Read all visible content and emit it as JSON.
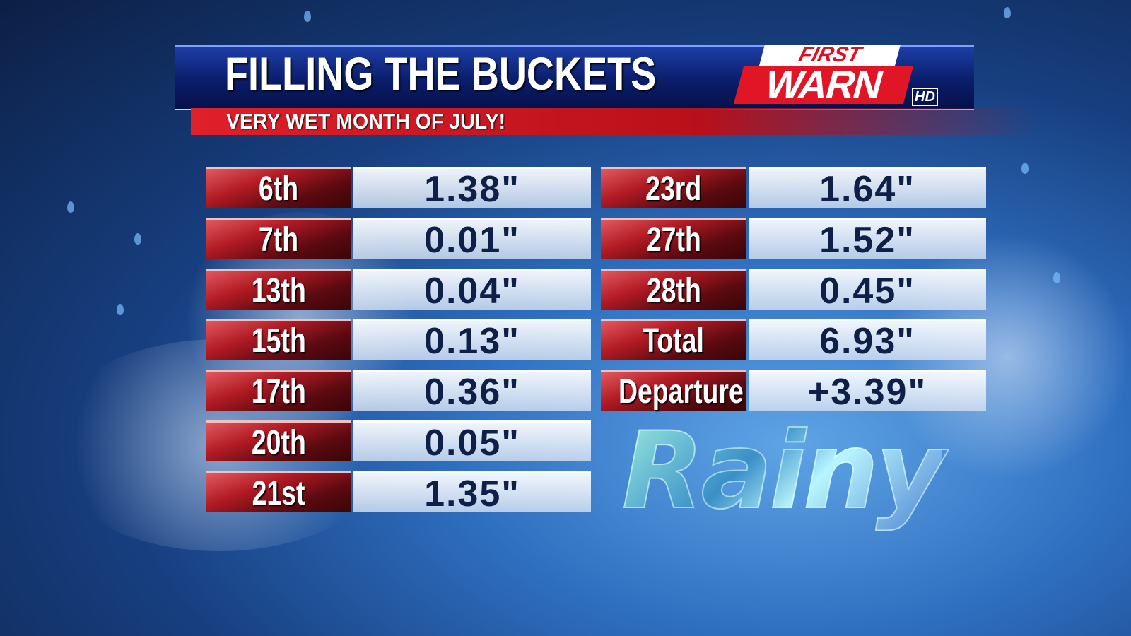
{
  "header": {
    "title": "FILLING THE BUCKETS",
    "subtitle": "VERY WET MONTH OF JULY!",
    "logo": {
      "first": "FIRST",
      "warn": "WARN",
      "hd": "HD"
    }
  },
  "table": {
    "left": [
      [
        "6th",
        "1.38\""
      ],
      [
        "7th",
        "0.01\""
      ],
      [
        "13th",
        "0.04\""
      ],
      [
        "15th",
        "0.13\""
      ],
      [
        "17th",
        "0.36\""
      ],
      [
        "20th",
        "0.05\""
      ],
      [
        "21st",
        "1.35\""
      ]
    ],
    "right": [
      [
        "23rd",
        "1.64\""
      ],
      [
        "27th",
        "1.52\""
      ],
      [
        "28th",
        "0.45\""
      ],
      [
        "Total",
        "6.93\""
      ],
      [
        "Departure",
        "+3.39\""
      ]
    ]
  },
  "badge": "Rainy"
}
